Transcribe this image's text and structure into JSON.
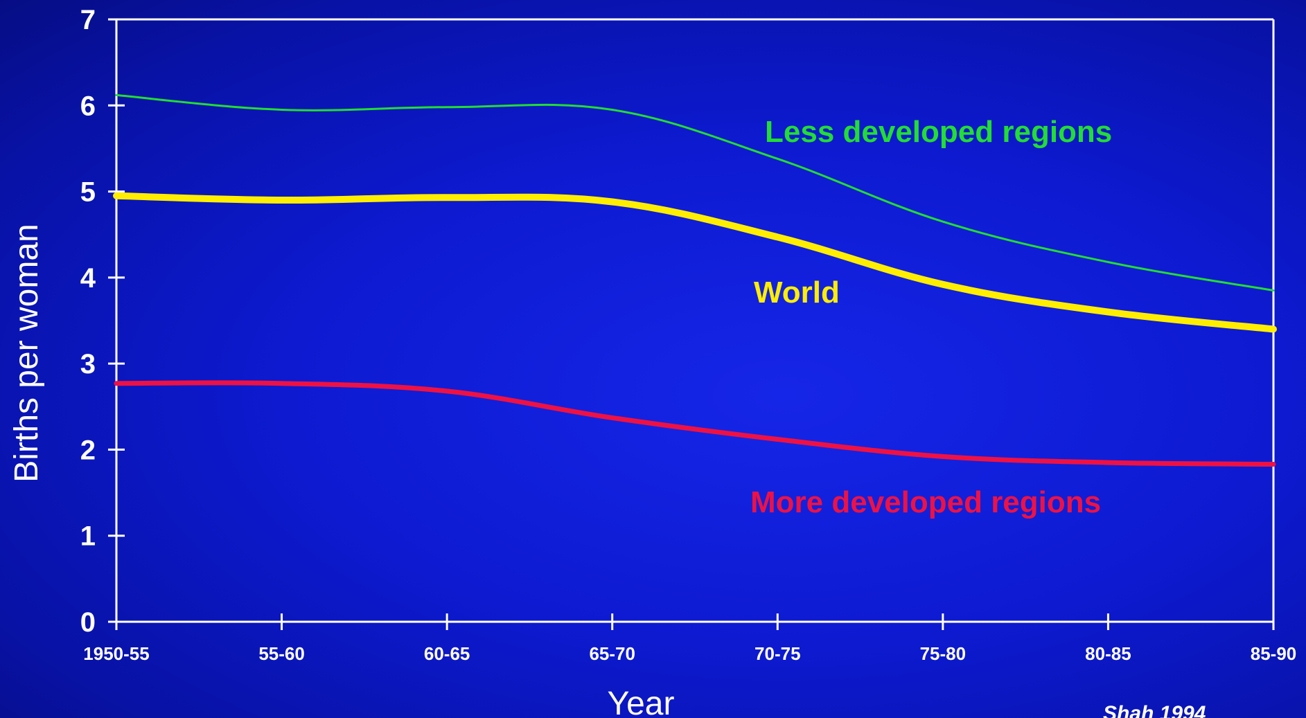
{
  "chart_data": {
    "type": "line",
    "title": "",
    "xlabel": "Year",
    "ylabel": "Births per woman",
    "ylim": [
      0,
      7
    ],
    "yticks": [
      "0",
      "1",
      "2",
      "3",
      "4",
      "5",
      "6",
      "7"
    ],
    "categories": [
      "1950-55",
      "55-60",
      "60-65",
      "65-70",
      "70-75",
      "75-80",
      "80-85",
      "85-90"
    ],
    "series": [
      {
        "name": "Less developed regions",
        "color": "#22dd33",
        "style": "thin",
        "values": [
          6.12,
          5.95,
          5.98,
          5.95,
          5.38,
          4.65,
          4.18,
          3.85
        ]
      },
      {
        "name": "World",
        "color": "#ffee00",
        "style": "thick",
        "values": [
          4.95,
          4.9,
          4.93,
          4.88,
          4.47,
          3.92,
          3.6,
          3.4
        ]
      },
      {
        "name": "More developed regions",
        "color": "#ee1144",
        "style": "medium",
        "values": [
          2.77,
          2.77,
          2.68,
          2.37,
          2.12,
          1.92,
          1.85,
          1.83
        ]
      }
    ],
    "source": "Shah 1994",
    "legend": "inline-labels",
    "grid": false
  }
}
